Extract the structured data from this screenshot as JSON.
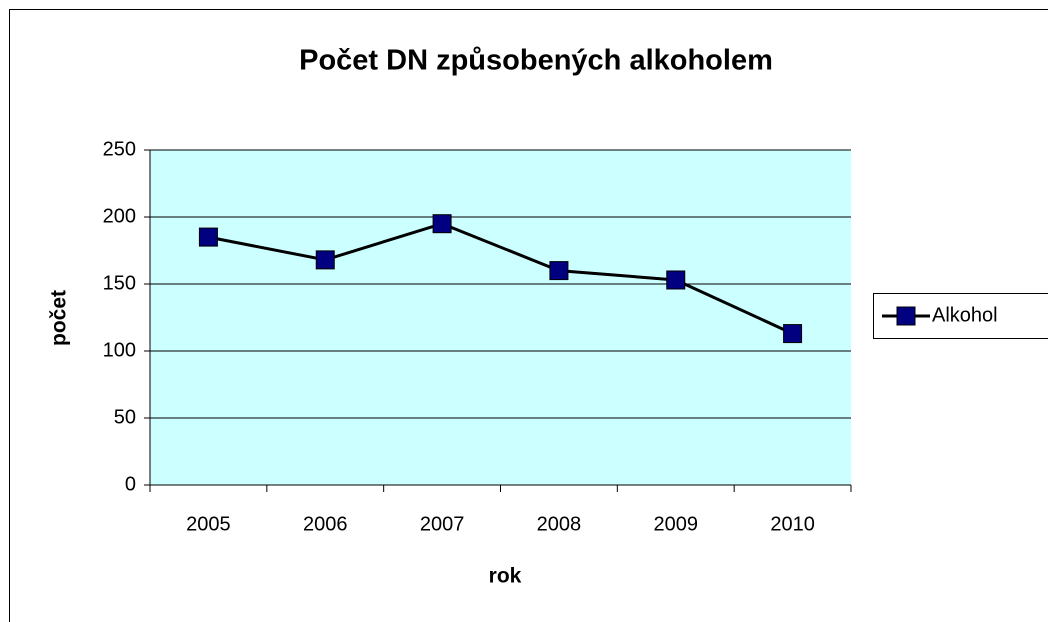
{
  "chart_data": {
    "type": "line",
    "title": "Počet DN způsobených alkoholem",
    "x_label": "rok",
    "y_label": "počet",
    "categories": [
      "2005",
      "2006",
      "2007",
      "2008",
      "2009",
      "2010"
    ],
    "series": [
      {
        "name": "Alkohol",
        "color": "#000000",
        "marker_color": "#000080",
        "values": [
          185,
          168,
          195,
          160,
          153,
          113
        ]
      }
    ],
    "ylim": [
      0,
      250
    ],
    "yticks": [
      0,
      50,
      100,
      150,
      200,
      250
    ],
    "grid": true,
    "plot_background": "#ccffff",
    "legend": "right"
  }
}
